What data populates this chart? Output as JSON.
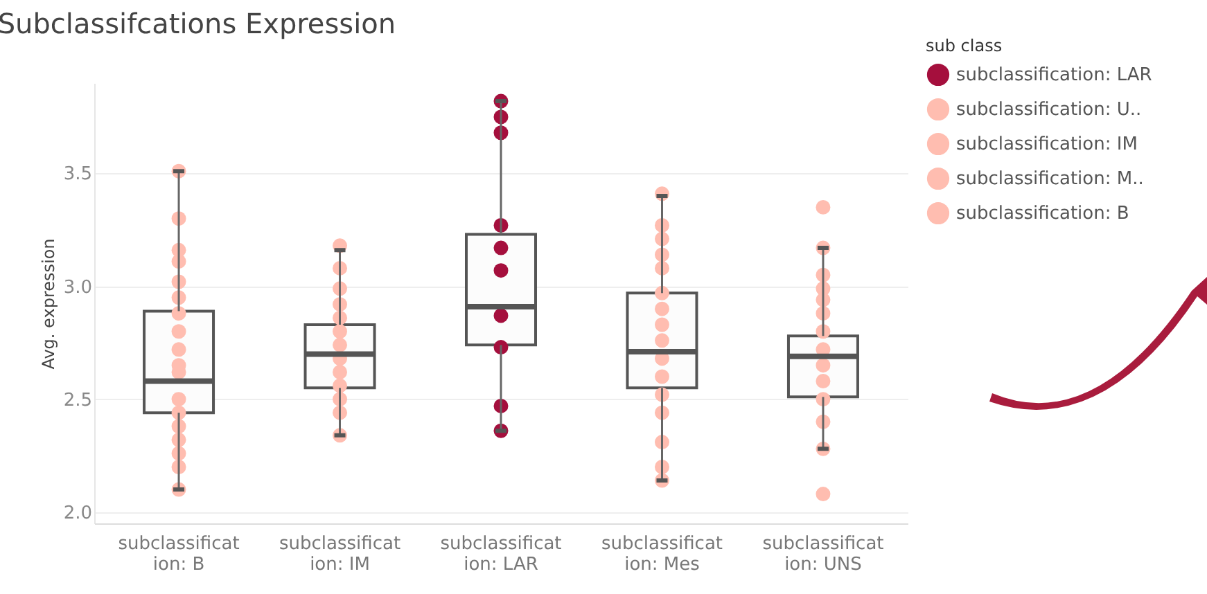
{
  "chart_data": {
    "type": "box",
    "title": "Subclassifcations Expression",
    "ylabel": "Avg. expression",
    "legend_title": "sub class",
    "categories": [
      "subclassification: B",
      "subclassification: IM",
      "subclassification: LAR",
      "subclassification: Mes",
      "subclassification: UNS"
    ],
    "boxes": [
      {
        "low": 2.1,
        "q1": 2.44,
        "median": 2.58,
        "q3": 2.89,
        "high": 3.51
      },
      {
        "low": 2.34,
        "q1": 2.55,
        "median": 2.7,
        "q3": 2.83,
        "high": 3.16
      },
      {
        "low": 2.36,
        "q1": 2.74,
        "median": 2.91,
        "q3": 3.23,
        "high": 3.82
      },
      {
        "low": 2.14,
        "q1": 2.55,
        "median": 2.71,
        "q3": 2.97,
        "high": 3.4
      },
      {
        "low": 2.28,
        "q1": 2.51,
        "median": 2.69,
        "q3": 2.78,
        "high": 3.17
      }
    ],
    "series": [
      {
        "name": "subclassification: LAR",
        "type": "scatter",
        "color": "#a50f3d",
        "x": [
          "subclassification: LAR",
          "subclassification: LAR",
          "subclassification: LAR",
          "subclassification: LAR",
          "subclassification: LAR",
          "subclassification: LAR",
          "subclassification: LAR",
          "subclassification: LAR",
          "subclassification: LAR",
          "subclassification: LAR",
          "subclassification: LAR"
        ],
        "values": [
          3.82,
          3.75,
          3.68,
          3.27,
          3.17,
          3.07,
          null,
          2.87,
          2.73,
          2.47,
          2.36
        ]
      },
      {
        "name": "subclassification: U..",
        "type": "scatter",
        "color": "#ffbdb0",
        "x": [
          "subclassification: UNS",
          "subclassification: UNS",
          "subclassification: UNS",
          "subclassification: UNS",
          "subclassification: UNS",
          "subclassification: UNS",
          "subclassification: UNS",
          "subclassification: UNS",
          "subclassification: UNS",
          "subclassification: UNS",
          "subclassification: UNS",
          "subclassification: UNS",
          "subclassification: UNS",
          "subclassification: UNS"
        ],
        "values": [
          3.35,
          3.17,
          3.05,
          2.99,
          2.94,
          2.88,
          2.8,
          2.72,
          2.65,
          2.58,
          2.5,
          2.4,
          2.28,
          2.08
        ]
      },
      {
        "name": "subclassification: IM",
        "type": "scatter",
        "color": "#ffbdb0",
        "x": [
          "subclassification: IM",
          "subclassification: IM",
          "subclassification: IM",
          "subclassification: IM",
          "subclassification: IM",
          "subclassification: IM",
          "subclassification: IM",
          "subclassification: IM",
          "subclassification: IM",
          "subclassification: IM",
          "subclassification: IM",
          "subclassification: IM",
          "subclassification: IM"
        ],
        "values": [
          3.18,
          3.08,
          2.99,
          2.92,
          2.86,
          2.8,
          2.74,
          2.68,
          2.62,
          2.56,
          2.5,
          2.44,
          2.34
        ]
      },
      {
        "name": "subclassification: M..",
        "type": "scatter",
        "color": "#ffbdb0",
        "x": [
          "subclassification: Mes",
          "subclassification: Mes",
          "subclassification: Mes",
          "subclassification: Mes",
          "subclassification: Mes",
          "subclassification: Mes",
          "subclassification: Mes",
          "subclassification: Mes",
          "subclassification: Mes",
          "subclassification: Mes",
          "subclassification: Mes",
          "subclassification: Mes",
          "subclassification: Mes",
          "subclassification: Mes",
          "subclassification: Mes",
          "subclassification: Mes"
        ],
        "values": [
          3.41,
          3.27,
          3.21,
          3.14,
          3.08,
          2.97,
          2.9,
          2.83,
          2.76,
          2.68,
          2.6,
          2.52,
          2.44,
          2.31,
          2.2,
          2.14
        ]
      },
      {
        "name": "subclassification: B",
        "type": "scatter",
        "color": "#ffbdb0",
        "x": [
          "subclassification: B",
          "subclassification: B",
          "subclassification: B",
          "subclassification: B",
          "subclassification: B",
          "subclassification: B",
          "subclassification: B",
          "subclassification: B",
          "subclassification: B",
          "subclassification: B",
          "subclassification: B",
          "subclassification: B",
          "subclassification: B",
          "subclassification: B",
          "subclassification: B",
          "subclassification: B",
          "subclassification: B",
          "subclassification: B",
          "subclassification: B",
          "subclassification: B",
          "subclassification: B"
        ],
        "values": [
          3.51,
          3.3,
          null,
          3.16,
          3.11,
          3.02,
          2.95,
          2.88,
          2.8,
          2.72,
          2.65,
          2.62,
          2.5,
          2.44,
          2.38,
          2.32,
          2.26,
          2.2,
          null,
          2.1,
          null
        ]
      }
    ],
    "ylim": [
      1.95,
      3.9
    ],
    "yticks": [
      {
        "value": 2,
        "label": "2.0"
      },
      {
        "value": 2.5,
        "label": "2.5"
      },
      {
        "value": 3,
        "label": "3.0"
      },
      {
        "value": 3.5,
        "label": "3.5"
      }
    ],
    "grid": "y",
    "legend": "top right",
    "marker": "circle"
  }
}
